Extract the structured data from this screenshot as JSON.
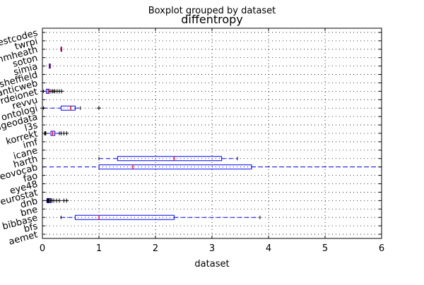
{
  "chart_data": {
    "type": "boxplot",
    "orientation": "horizontal",
    "suptitle": "Boxplot grouped by dataset",
    "title": "diffentropy",
    "xlabel": "dataset",
    "ylabel": "",
    "xlim": [
      0,
      6
    ],
    "xticks": [
      0,
      1,
      2,
      3,
      4,
      5,
      6
    ],
    "grid": true,
    "grid_style": "dotted",
    "colors": {
      "box": "#0000ff",
      "median": "#ff0000",
      "flier": "#000000",
      "whisker": "#0000ff",
      "axes": "#000000",
      "grid": "#000000"
    },
    "categories": [
      "aemet",
      "bfs",
      "bibbase",
      "bne",
      "dnb",
      "eurostat",
      "eye48",
      "fao",
      "geovocab",
      "harth",
      "icane",
      "imf",
      "korrekt",
      "l3s",
      "linkedgeodata",
      "ontologi",
      "revvu",
      "rdeionet",
      "semanticweb",
      "sheffield",
      "simia",
      "soton",
      "uhmheath",
      "twrpi",
      "testcodes"
    ],
    "boxes": [
      null,
      null,
      {
        "whislo": 0.33,
        "q1": 0.58,
        "med": 1.0,
        "q3": 2.33,
        "whishi": 3.85,
        "fliers": []
      },
      null,
      {
        "whislo": 0.08,
        "q1": 0.08,
        "med": 0.1,
        "q3": 0.15,
        "whishi": 0.15,
        "fliers": [
          0.09,
          0.1,
          0.11,
          0.12,
          0.14,
          0.17,
          0.2,
          0.25,
          0.3,
          0.38,
          0.43
        ]
      },
      null,
      null,
      null,
      {
        "whislo": 0.0,
        "q1": 1.0,
        "med": 1.6,
        "q3": 3.7,
        "whishi": 6.0,
        "fliers": []
      },
      {
        "whislo": 1.0,
        "q1": 1.33,
        "med": 2.33,
        "q3": 3.17,
        "whishi": 3.45,
        "fliers": []
      },
      null,
      null,
      {
        "whislo": 0.05,
        "q1": 0.15,
        "med": 0.18,
        "q3": 0.22,
        "whishi": 0.3,
        "fliers": [
          0.04,
          0.06,
          0.33,
          0.38,
          0.43
        ]
      },
      null,
      null,
      {
        "whislo": 0.02,
        "q1": 0.33,
        "med": 0.5,
        "q3": 0.58,
        "whishi": 0.67,
        "fliers": [
          0.0,
          1.0
        ]
      },
      null,
      {
        "whislo": 0.02,
        "q1": 0.07,
        "med": 0.1,
        "q3": 0.12,
        "whishi": 0.2,
        "fliers": [
          0.0,
          0.15,
          0.18,
          0.22,
          0.26,
          0.3,
          0.34
        ]
      },
      null,
      null,
      {
        "whislo": 0.12,
        "q1": 0.12,
        "med": 0.13,
        "q3": 0.14,
        "whishi": 0.14,
        "fliers": []
      },
      null,
      {
        "whislo": 0.33,
        "q1": 0.33,
        "med": 0.33,
        "q3": 0.33,
        "whishi": 0.33,
        "fliers": []
      },
      null,
      null
    ]
  }
}
